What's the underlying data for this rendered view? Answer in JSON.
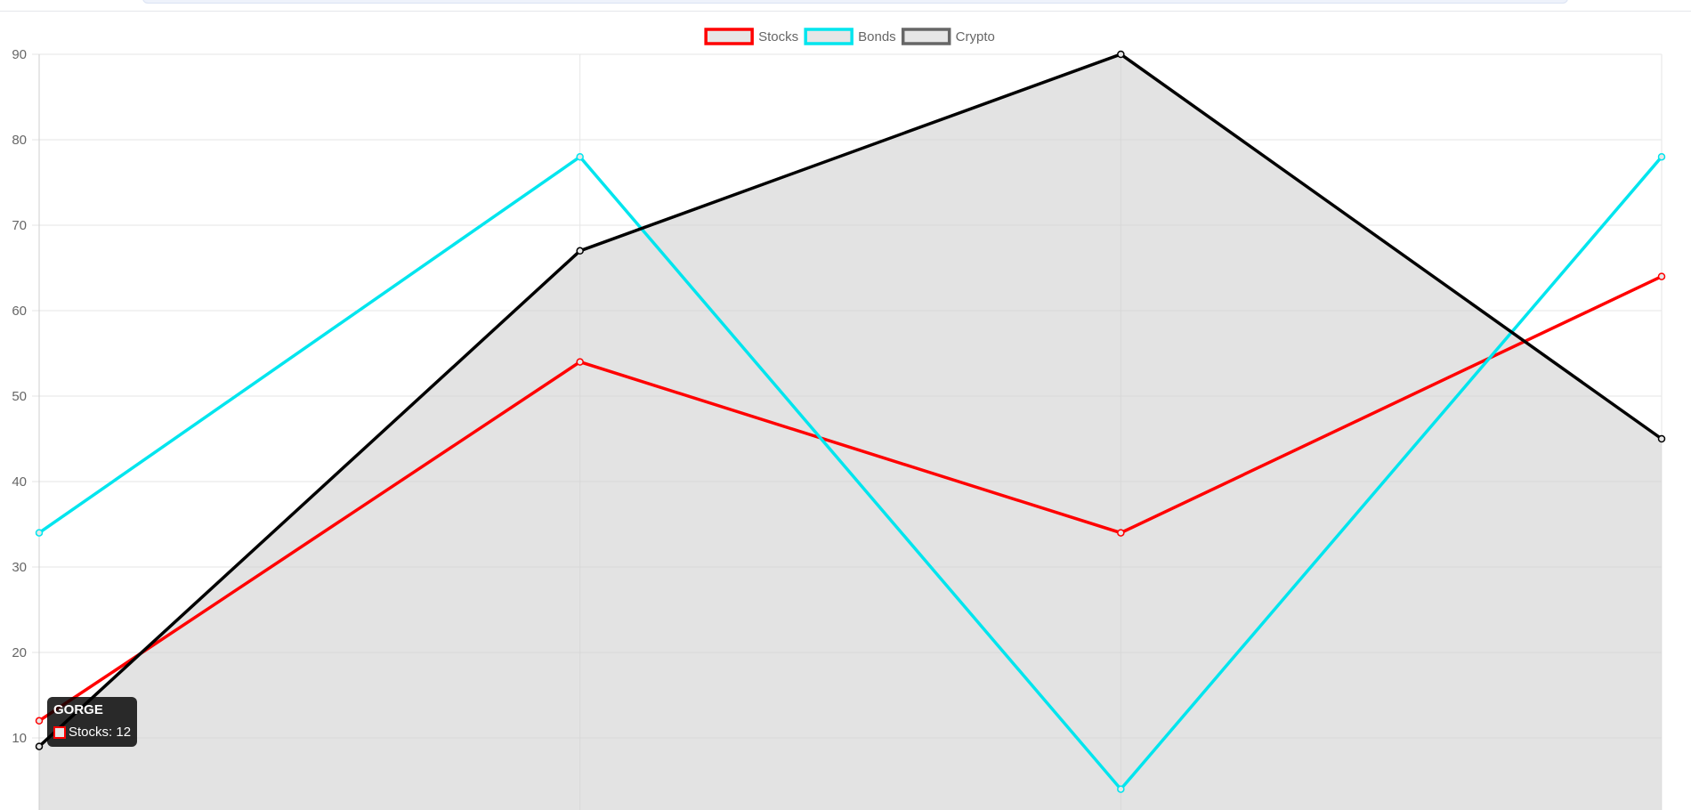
{
  "chart_data": {
    "type": "line",
    "categories": [
      "",
      "",
      "",
      ""
    ],
    "series": [
      {
        "name": "Stocks",
        "values": [
          12,
          54,
          34,
          64
        ],
        "color": "#ff0000",
        "fill": false
      },
      {
        "name": "Bonds",
        "values": [
          34,
          78,
          4,
          78
        ],
        "color": "#00e5ee",
        "fill": false
      },
      {
        "name": "Crypto",
        "values": [
          9,
          67,
          90,
          45
        ],
        "color": "#000000",
        "fill": true,
        "fillColor": "#cccccc"
      }
    ],
    "yticks": [
      "10",
      "20",
      "30",
      "40",
      "50",
      "60",
      "70",
      "80",
      "90"
    ],
    "ylim": [
      0,
      90
    ],
    "grid": true,
    "legend_position": "top-center",
    "title": "",
    "xlabel": "",
    "ylabel": ""
  },
  "tooltip": {
    "title": "GORGE",
    "series_label": "Stocks",
    "value_text": "Stocks: 12"
  }
}
